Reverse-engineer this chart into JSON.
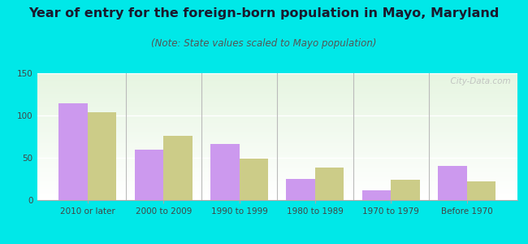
{
  "title": "Year of entry for the foreign-born population in Mayo, Maryland",
  "subtitle": "(Note: State values scaled to Mayo population)",
  "categories": [
    "2010 or later",
    "2000 to 2009",
    "1990 to 1999",
    "1980 to 1989",
    "1970 to 1979",
    "Before 1970"
  ],
  "mayo_values": [
    114,
    60,
    66,
    25,
    12,
    40
  ],
  "maryland_values": [
    104,
    76,
    49,
    38,
    24,
    22
  ],
  "mayo_color": "#cc99ee",
  "maryland_color": "#cccc88",
  "background_outer": "#00e8e8",
  "ylim": [
    0,
    150
  ],
  "yticks": [
    0,
    50,
    100,
    150
  ],
  "bar_width": 0.38,
  "title_fontsize": 11.5,
  "subtitle_fontsize": 8.5,
  "tick_fontsize": 7.5,
  "legend_fontsize": 9,
  "watermark": "  City-Data.com"
}
